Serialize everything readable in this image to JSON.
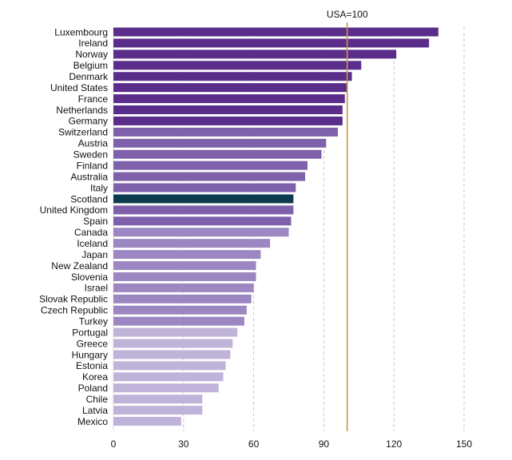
{
  "chart_data": {
    "type": "bar",
    "orientation": "horizontal",
    "reference_line": {
      "label": "USA=100",
      "value": 100,
      "color": "#c8964a"
    },
    "xlim": [
      0,
      150
    ],
    "xticks": [
      "0",
      "30",
      "60",
      "90",
      "120",
      "150"
    ],
    "grid": "vertical dashed",
    "categories": [
      "Luxembourg",
      "Ireland",
      "Norway",
      "Belgium",
      "Denmark",
      "United States",
      "France",
      "Netherlands",
      "Germany",
      "Switzerland",
      "Austria",
      "Sweden",
      "Finland",
      "Australia",
      "Italy",
      "Scotland",
      "United Kingdom",
      "Spain",
      "Canada",
      "Iceland",
      "Japan",
      "New Zealand",
      "Slovenia",
      "Israel",
      "Slovak Republic",
      "Czech Republic",
      "Turkey",
      "Portugal",
      "Greece",
      "Hungary",
      "Estonia",
      "Korea",
      "Poland",
      "Chile",
      "Latvia",
      "Mexico"
    ],
    "values": [
      139,
      135,
      121,
      106,
      102,
      100,
      99,
      98,
      98,
      96,
      91,
      89,
      83,
      82,
      78,
      77,
      77,
      76,
      75,
      67,
      63,
      61,
      61,
      60,
      59,
      57,
      56,
      53,
      51,
      50,
      48,
      47,
      45,
      38,
      38,
      29
    ],
    "colors": {
      "top": "#5a2d8a",
      "upper_middle": "#7e61aa",
      "lower_middle": "#9c87c2",
      "bottom": "#c0b3da",
      "highlight": "#0c3a4f"
    },
    "color_groups": [
      "top",
      "top",
      "top",
      "top",
      "top",
      "top",
      "top",
      "top",
      "top",
      "upper_middle",
      "upper_middle",
      "upper_middle",
      "upper_middle",
      "upper_middle",
      "upper_middle",
      "highlight",
      "upper_middle",
      "upper_middle",
      "lower_middle",
      "lower_middle",
      "lower_middle",
      "lower_middle",
      "lower_middle",
      "lower_middle",
      "lower_middle",
      "lower_middle",
      "lower_middle",
      "bottom",
      "bottom",
      "bottom",
      "bottom",
      "bottom",
      "bottom",
      "bottom",
      "bottom",
      "bottom"
    ]
  }
}
